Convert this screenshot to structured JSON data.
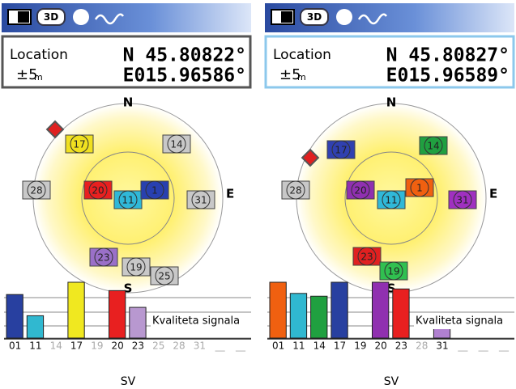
{
  "panels": [
    {
      "header": {
        "icon_text": "3D"
      },
      "location": {
        "label": "Location",
        "accuracy": "±5",
        "accuracy_unit": "m",
        "lat": "N 45.80822°",
        "lon": "E015.96586°"
      },
      "sky": {
        "north": "N",
        "east": "E",
        "south": "S",
        "satellites": [
          {
            "id": "17",
            "color": "#f0e020"
          },
          {
            "id": "14",
            "color": "#c8c8c8"
          },
          {
            "id": "28",
            "color": "#c8c8c8"
          },
          {
            "id": "20",
            "color": "#e82020"
          },
          {
            "id": "11",
            "color": "#30b8d8"
          },
          {
            "id": "1",
            "color": "#2840b0"
          },
          {
            "id": "31",
            "color": "#c8c8c8"
          },
          {
            "id": "23",
            "color": "#9a70c8"
          },
          {
            "id": "19",
            "color": "#c8c8c8"
          },
          {
            "id": "25",
            "color": "#c8c8c8"
          }
        ]
      },
      "signal": {
        "label": "Kvaliteta signala",
        "axis_label": "SV",
        "bars": [
          {
            "sv": "01",
            "value": 78,
            "color": "#2840a0",
            "active": true
          },
          {
            "sv": "11",
            "value": 40,
            "color": "#30b8d0",
            "active": true
          },
          {
            "sv": "14",
            "value": 0,
            "color": "#888",
            "active": false
          },
          {
            "sv": "17",
            "value": 100,
            "color": "#f0e820",
            "active": true
          },
          {
            "sv": "19",
            "value": 0,
            "color": "#888",
            "active": false
          },
          {
            "sv": "20",
            "value": 85,
            "color": "#e82020",
            "active": true
          },
          {
            "sv": "23",
            "value": 55,
            "color": "#b898d0",
            "active": true
          },
          {
            "sv": "25",
            "value": 0,
            "color": "#888",
            "active": false
          },
          {
            "sv": "28",
            "value": 0,
            "color": "#888",
            "active": false
          },
          {
            "sv": "31",
            "value": 0,
            "color": "#888",
            "active": false
          },
          {
            "sv": "__",
            "value": 0,
            "color": "#888",
            "active": false
          },
          {
            "sv": "__",
            "value": 0,
            "color": "#888",
            "active": false
          }
        ]
      }
    },
    {
      "header": {
        "icon_text": "3D"
      },
      "location": {
        "label": "Location",
        "accuracy": "±5",
        "accuracy_unit": "m",
        "lat": "N 45.80827°",
        "lon": "E015.96589°"
      },
      "sky": {
        "north": "N",
        "east": "E",
        "south": "S",
        "satellites": [
          {
            "id": "17",
            "color": "#3040b0"
          },
          {
            "id": "14",
            "color": "#20a040"
          },
          {
            "id": "28",
            "color": "#c8c8c8"
          },
          {
            "id": "20",
            "color": "#9030b0"
          },
          {
            "id": "11",
            "color": "#30b8d8"
          },
          {
            "id": "1",
            "color": "#f06010"
          },
          {
            "id": "31",
            "color": "#a030c0"
          },
          {
            "id": "23",
            "color": "#e02020"
          },
          {
            "id": "19",
            "color": "#30c050"
          }
        ]
      },
      "signal": {
        "label": "Kvaliteta signala",
        "axis_label": "SV",
        "bars": [
          {
            "sv": "01",
            "value": 100,
            "color": "#f06010",
            "active": true
          },
          {
            "sv": "11",
            "value": 80,
            "color": "#30b8d0",
            "active": true
          },
          {
            "sv": "14",
            "value": 75,
            "color": "#20a040",
            "active": true
          },
          {
            "sv": "17",
            "value": 100,
            "color": "#2840a0",
            "active": true
          },
          {
            "sv": "19",
            "value": 0,
            "color": "#888",
            "active": true
          },
          {
            "sv": "20",
            "value": 100,
            "color": "#9030b0",
            "active": true
          },
          {
            "sv": "23",
            "value": 88,
            "color": "#e82020",
            "active": true
          },
          {
            "sv": "28",
            "value": 0,
            "color": "#888",
            "active": false
          },
          {
            "sv": "31",
            "value": 30,
            "color": "#b080d0",
            "active": true
          },
          {
            "sv": "__",
            "value": 0,
            "color": "#888",
            "active": false
          },
          {
            "sv": "__",
            "value": 0,
            "color": "#888",
            "active": false
          },
          {
            "sv": "__",
            "value": 0,
            "color": "#888",
            "active": false
          }
        ]
      }
    }
  ]
}
